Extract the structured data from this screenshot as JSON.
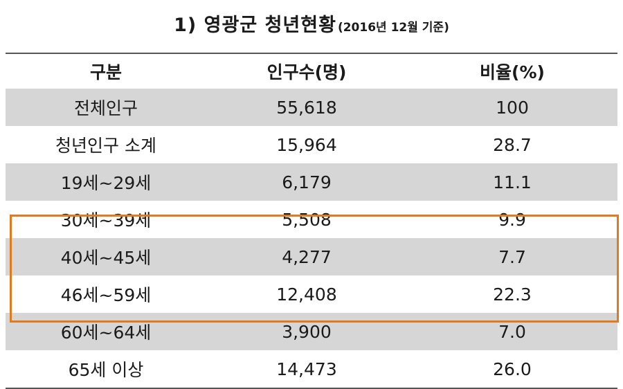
{
  "title": {
    "main": "1) 영광군 청년현황",
    "sub": "(2016년 12월 기준)"
  },
  "table": {
    "headers": [
      "구분",
      "인구수(명)",
      "비율(%)"
    ],
    "rows": [
      [
        "전체인구",
        "55,618",
        "100"
      ],
      [
        "청년인구 소계",
        "15,964",
        "28.7"
      ],
      [
        "19세~29세",
        "6,179",
        "11.1"
      ],
      [
        "30세~39세",
        "5,508",
        "9.9"
      ],
      [
        "40세~45세",
        "4,277",
        "7.7"
      ],
      [
        "46세~59세",
        "12,408",
        "22.3"
      ],
      [
        "60세~64세",
        "3,900",
        "7.0"
      ],
      [
        "65세 이상",
        "14,473",
        "26.0"
      ]
    ]
  },
  "colors": {
    "shade": "#d6d6d6",
    "highlight_border": "#e07a1f",
    "rule": "#555555"
  }
}
